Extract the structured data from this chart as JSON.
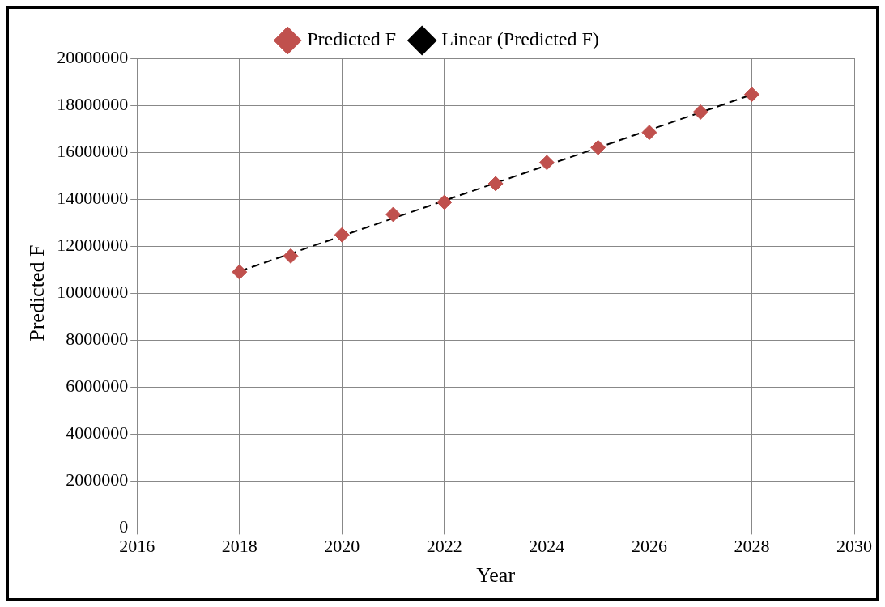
{
  "chart_data": {
    "type": "scatter",
    "xlabel": "Year",
    "ylabel": "Predicted F",
    "x": [
      2018,
      2019,
      2020,
      2021,
      2022,
      2023,
      2024,
      2025,
      2026,
      2027,
      2028
    ],
    "series": [
      {
        "name": "Predicted F",
        "color": "#c0504d",
        "marker": "diamond",
        "values": [
          10900000,
          11580000,
          12480000,
          13350000,
          13870000,
          14660000,
          15560000,
          16200000,
          16840000,
          17710000,
          18460000
        ]
      },
      {
        "name": "Linear (Predicted F)",
        "type": "line",
        "color": "#000000",
        "line_style": "dashed",
        "marker": "diamond",
        "x": [
          2018,
          2028
        ],
        "values": [
          10930000,
          18450000
        ]
      }
    ],
    "xlim": [
      2016,
      2030
    ],
    "xticks": [
      2016,
      2018,
      2020,
      2022,
      2024,
      2026,
      2028,
      2030
    ],
    "ylim": [
      0,
      20000000
    ],
    "yticks": [
      0,
      2000000,
      4000000,
      6000000,
      8000000,
      10000000,
      12000000,
      14000000,
      16000000,
      18000000,
      20000000
    ],
    "grid": true,
    "legend": "top"
  }
}
